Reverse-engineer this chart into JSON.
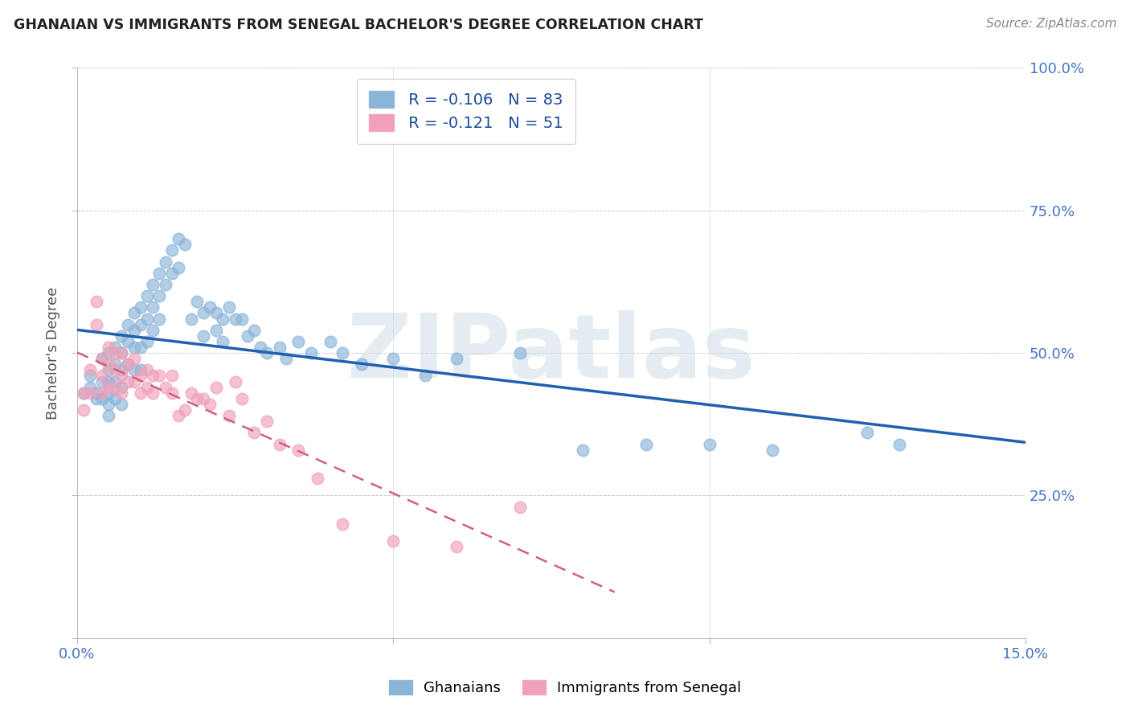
{
  "title": "GHANAIAN VS IMMIGRANTS FROM SENEGAL BACHELOR'S DEGREE CORRELATION CHART",
  "source": "Source: ZipAtlas.com",
  "ylabel": "Bachelor's Degree",
  "xlim": [
    0.0,
    0.15
  ],
  "ylim": [
    0.0,
    1.0
  ],
  "ghanaian_color": "#8ab4d8",
  "senegal_color": "#f0a0b8",
  "ghanaian_R": -0.106,
  "ghanaian_N": 83,
  "senegal_R": -0.121,
  "senegal_N": 51,
  "blue_line_color": "#2060b0",
  "pink_line_color": "#d06080",
  "watermark_text": "ZIPatlas",
  "legend_label1": "Ghanaians",
  "legend_label2": "Immigrants from Senegal",
  "ghanaian_x": [
    0.001,
    0.002,
    0.002,
    0.003,
    0.003,
    0.004,
    0.004,
    0.004,
    0.005,
    0.005,
    0.005,
    0.005,
    0.005,
    0.005,
    0.006,
    0.006,
    0.006,
    0.006,
    0.007,
    0.007,
    0.007,
    0.007,
    0.007,
    0.008,
    0.008,
    0.008,
    0.009,
    0.009,
    0.009,
    0.009,
    0.01,
    0.01,
    0.01,
    0.01,
    0.011,
    0.011,
    0.011,
    0.012,
    0.012,
    0.012,
    0.013,
    0.013,
    0.013,
    0.014,
    0.014,
    0.015,
    0.015,
    0.016,
    0.016,
    0.017,
    0.018,
    0.019,
    0.02,
    0.02,
    0.021,
    0.022,
    0.022,
    0.023,
    0.023,
    0.024,
    0.025,
    0.026,
    0.027,
    0.028,
    0.029,
    0.03,
    0.032,
    0.033,
    0.035,
    0.037,
    0.04,
    0.042,
    0.045,
    0.05,
    0.055,
    0.06,
    0.07,
    0.08,
    0.09,
    0.1,
    0.11,
    0.125,
    0.13
  ],
  "ghanaian_y": [
    0.43,
    0.46,
    0.44,
    0.43,
    0.42,
    0.49,
    0.45,
    0.42,
    0.5,
    0.47,
    0.45,
    0.43,
    0.41,
    0.39,
    0.51,
    0.48,
    0.45,
    0.42,
    0.53,
    0.5,
    0.47,
    0.44,
    0.41,
    0.55,
    0.52,
    0.48,
    0.57,
    0.54,
    0.51,
    0.47,
    0.58,
    0.55,
    0.51,
    0.47,
    0.6,
    0.56,
    0.52,
    0.62,
    0.58,
    0.54,
    0.64,
    0.6,
    0.56,
    0.66,
    0.62,
    0.68,
    0.64,
    0.7,
    0.65,
    0.69,
    0.56,
    0.59,
    0.57,
    0.53,
    0.58,
    0.57,
    0.54,
    0.56,
    0.52,
    0.58,
    0.56,
    0.56,
    0.53,
    0.54,
    0.51,
    0.5,
    0.51,
    0.49,
    0.52,
    0.5,
    0.52,
    0.5,
    0.48,
    0.49,
    0.46,
    0.49,
    0.5,
    0.33,
    0.34,
    0.34,
    0.33,
    0.36,
    0.34
  ],
  "senegal_x": [
    0.001,
    0.001,
    0.002,
    0.002,
    0.003,
    0.003,
    0.004,
    0.004,
    0.004,
    0.005,
    0.005,
    0.005,
    0.006,
    0.006,
    0.006,
    0.007,
    0.007,
    0.007,
    0.008,
    0.008,
    0.009,
    0.009,
    0.01,
    0.01,
    0.011,
    0.011,
    0.012,
    0.012,
    0.013,
    0.014,
    0.015,
    0.015,
    0.016,
    0.017,
    0.018,
    0.019,
    0.02,
    0.021,
    0.022,
    0.024,
    0.025,
    0.026,
    0.028,
    0.03,
    0.032,
    0.035,
    0.038,
    0.042,
    0.05,
    0.06,
    0.07
  ],
  "senegal_y": [
    0.43,
    0.4,
    0.47,
    0.43,
    0.59,
    0.55,
    0.49,
    0.46,
    0.43,
    0.51,
    0.48,
    0.44,
    0.5,
    0.47,
    0.44,
    0.5,
    0.46,
    0.43,
    0.48,
    0.45,
    0.49,
    0.45,
    0.46,
    0.43,
    0.47,
    0.44,
    0.46,
    0.43,
    0.46,
    0.44,
    0.46,
    0.43,
    0.39,
    0.4,
    0.43,
    0.42,
    0.42,
    0.41,
    0.44,
    0.39,
    0.45,
    0.42,
    0.36,
    0.38,
    0.34,
    0.33,
    0.28,
    0.2,
    0.17,
    0.16,
    0.23
  ],
  "background_color": "#ffffff",
  "grid_color": "#cccccc"
}
